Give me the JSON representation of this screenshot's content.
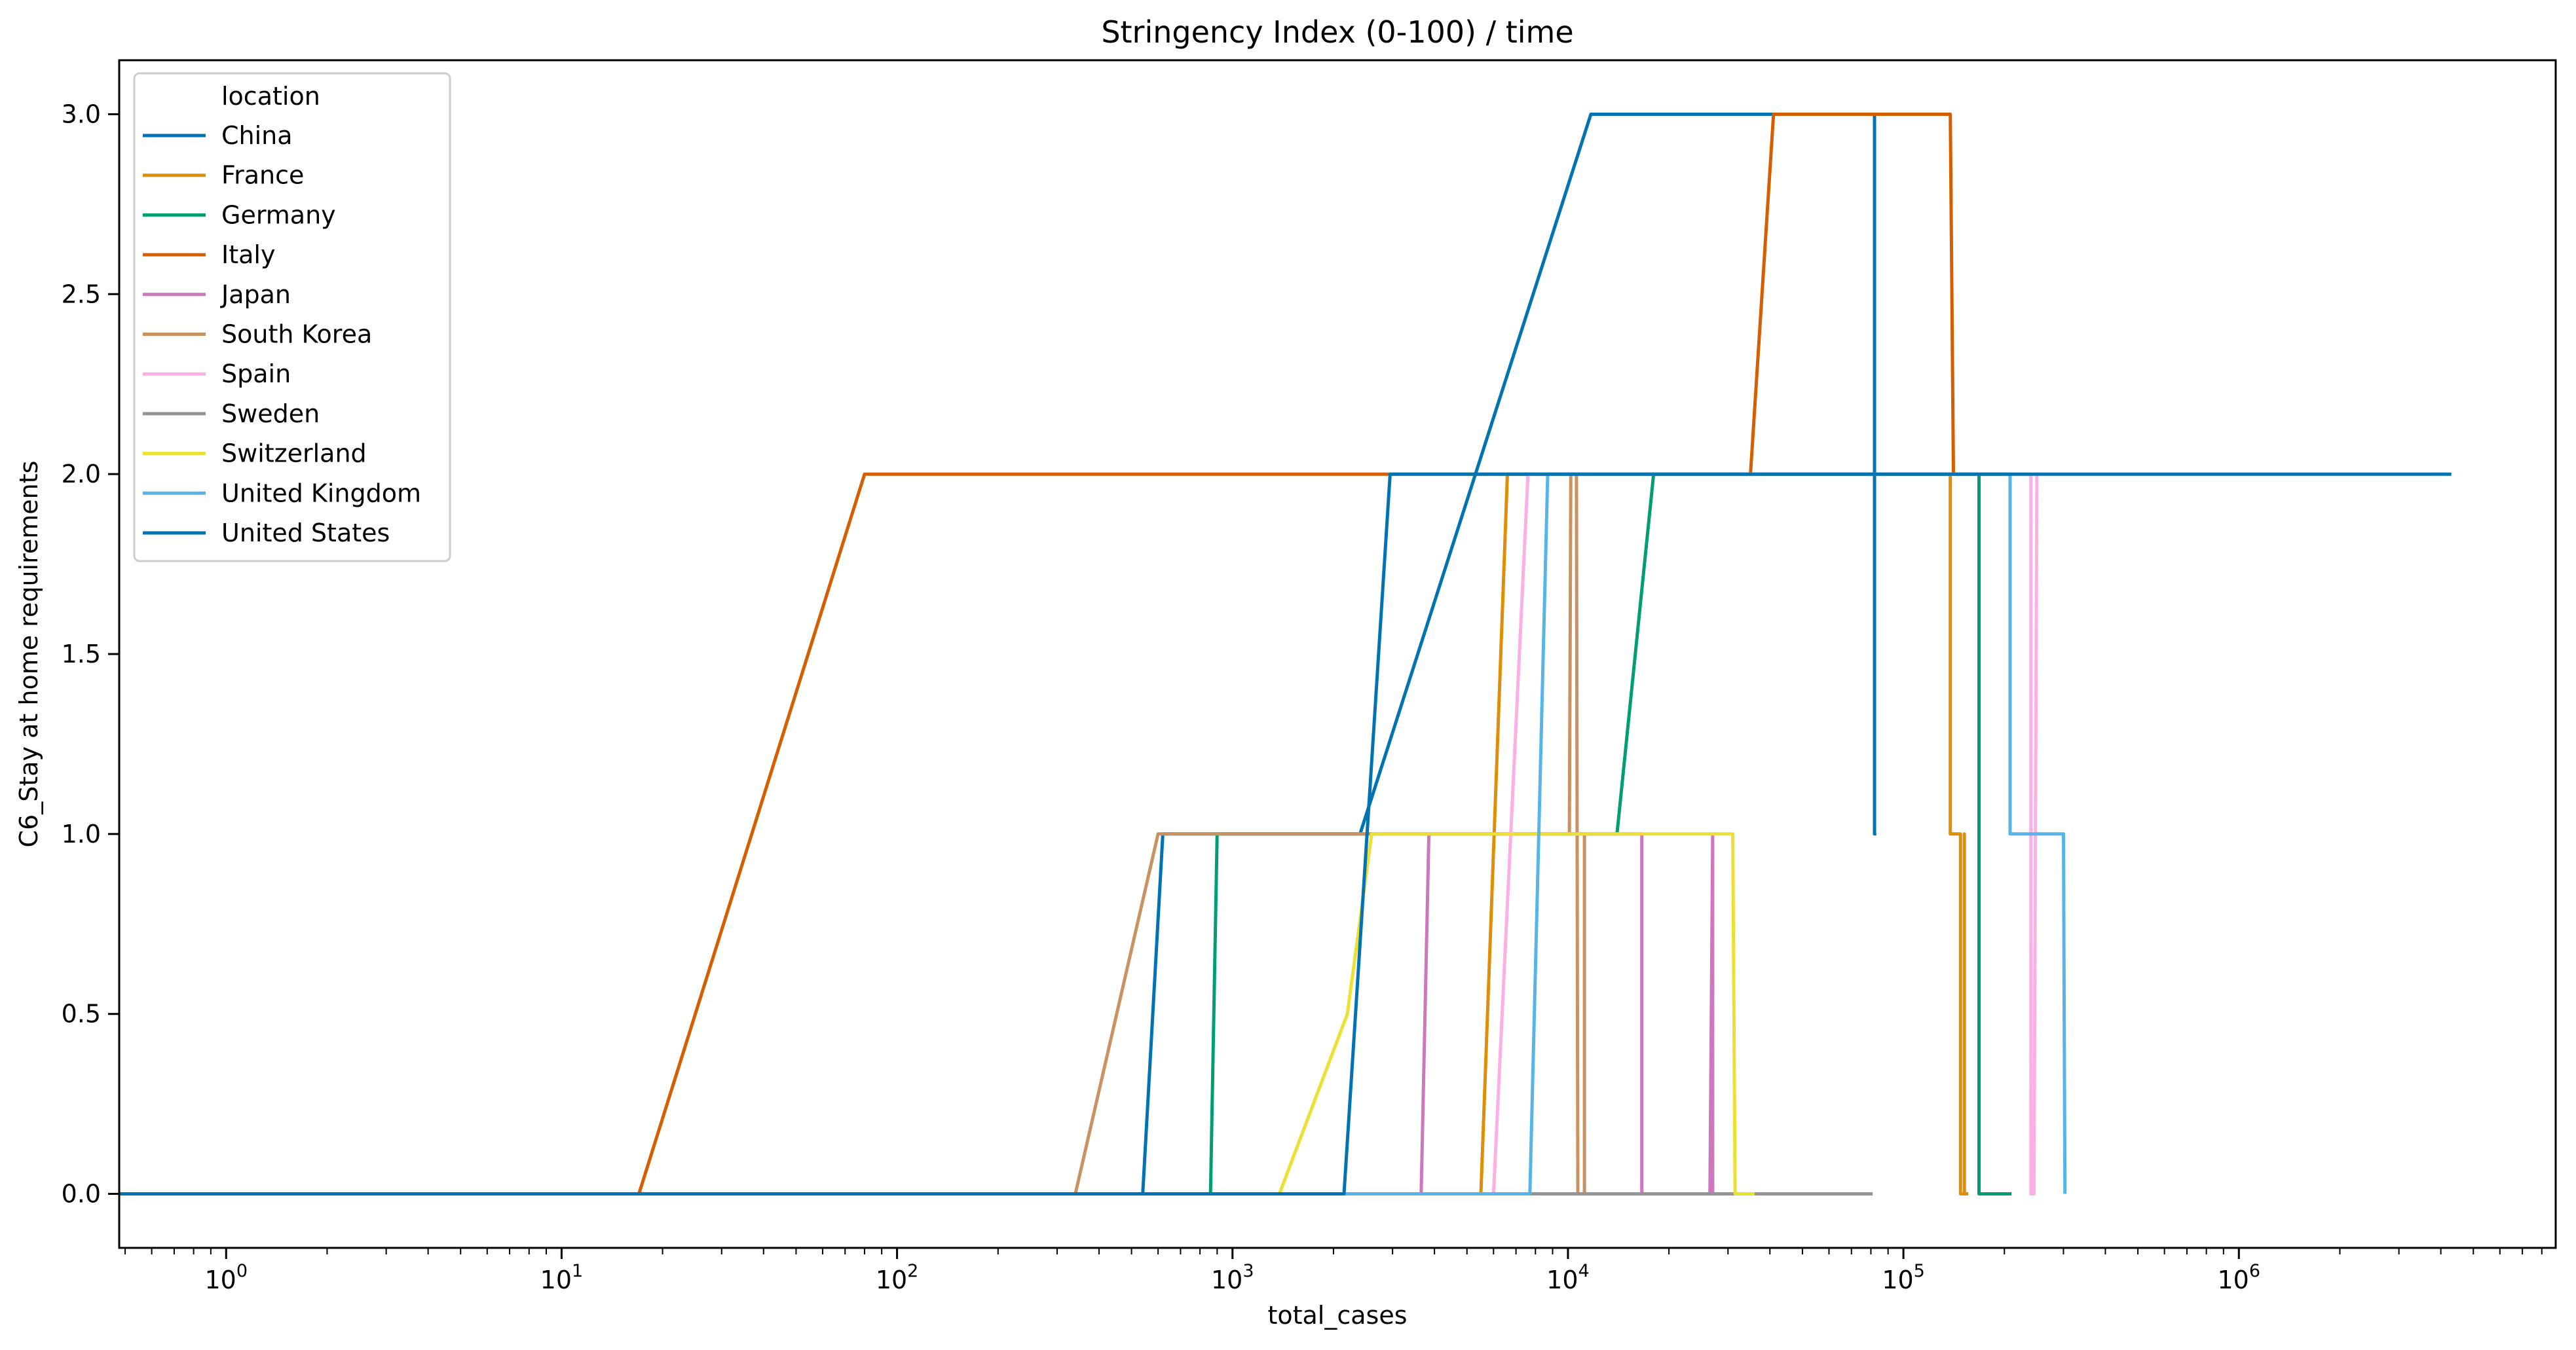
{
  "chart_data": {
    "type": "line",
    "title": "Stringency Index (0-100) / time",
    "xlabel": "total_cases",
    "ylabel": "C6_Stay at home requirements",
    "x_scale": "log",
    "xlim": [
      0.48,
      8800000
    ],
    "ylim": [
      -0.15,
      3.15
    ],
    "x_ticks": [
      {
        "value": 1,
        "base": "10",
        "exp": "0"
      },
      {
        "value": 10,
        "base": "10",
        "exp": "1"
      },
      {
        "value": 100,
        "base": "10",
        "exp": "2"
      },
      {
        "value": 1000,
        "base": "10",
        "exp": "3"
      },
      {
        "value": 10000,
        "base": "10",
        "exp": "4"
      },
      {
        "value": 100000,
        "base": "10",
        "exp": "5"
      },
      {
        "value": 1000000,
        "base": "10",
        "exp": "6"
      }
    ],
    "y_ticks": [
      {
        "value": 0,
        "label": "0.0"
      },
      {
        "value": 0.5,
        "label": "0.5"
      },
      {
        "value": 1,
        "label": "1.0"
      },
      {
        "value": 1.5,
        "label": "1.5"
      },
      {
        "value": 2,
        "label": "2.0"
      },
      {
        "value": 2.5,
        "label": "2.5"
      },
      {
        "value": 3,
        "label": "3.0"
      }
    ],
    "grid": false,
    "legend": {
      "title": "location",
      "position": "top-left"
    },
    "series": [
      {
        "name": "China",
        "color": "#0173b2",
        "points": [
          [
            0.48,
            0
          ],
          [
            540,
            0
          ],
          [
            620,
            1
          ],
          [
            2200,
            1
          ],
          [
            2250,
            1
          ],
          [
            2400,
            1
          ],
          [
            11700,
            3
          ],
          [
            82000,
            3
          ],
          [
            82000,
            1
          ],
          [
            82000,
            3
          ],
          [
            82000,
            1
          ],
          [
            82000,
            3
          ],
          [
            82000,
            1
          ],
          [
            82000,
            3
          ],
          [
            82000,
            1
          ],
          [
            83000,
            1
          ]
        ]
      },
      {
        "name": "France",
        "color": "#de8f05",
        "points": [
          [
            0.48,
            0
          ],
          [
            5500,
            0
          ],
          [
            6600,
            2
          ],
          [
            138000,
            2
          ],
          [
            138000,
            1
          ],
          [
            148000,
            1
          ],
          [
            148000,
            0
          ],
          [
            152000,
            0
          ],
          [
            152000,
            1
          ],
          [
            152000,
            0
          ],
          [
            156000,
            0
          ]
        ]
      },
      {
        "name": "Germany",
        "color": "#029e73",
        "points": [
          [
            0.48,
            0
          ],
          [
            860,
            0
          ],
          [
            900,
            1
          ],
          [
            14000,
            1
          ],
          [
            18000,
            2
          ],
          [
            168000,
            2
          ],
          [
            168000,
            0
          ],
          [
            210000,
            0
          ]
        ]
      },
      {
        "name": "Italy",
        "color": "#d55e00",
        "points": [
          [
            0.48,
            0
          ],
          [
            17,
            0
          ],
          [
            80,
            2
          ],
          [
            35000,
            2
          ],
          [
            41000,
            3
          ],
          [
            138000,
            3
          ],
          [
            141000,
            2
          ],
          [
            160000,
            2
          ]
        ]
      },
      {
        "name": "Japan",
        "color": "#cc78bc",
        "points": [
          [
            0.48,
            0
          ],
          [
            3650,
            0
          ],
          [
            3850,
            1
          ],
          [
            16600,
            1
          ],
          [
            16600,
            0
          ],
          [
            26500,
            0
          ],
          [
            27000,
            1
          ],
          [
            27000,
            0
          ],
          [
            30000,
            0
          ]
        ]
      },
      {
        "name": "South Korea",
        "color": "#ca9161",
        "points": [
          [
            0.48,
            0
          ],
          [
            340,
            0
          ],
          [
            600,
            1
          ],
          [
            10100,
            1
          ],
          [
            10200,
            2
          ],
          [
            10600,
            2
          ],
          [
            10700,
            0
          ],
          [
            11200,
            0
          ],
          [
            11200,
            1
          ],
          [
            11200,
            0
          ],
          [
            11500,
            0
          ]
        ]
      },
      {
        "name": "Spain",
        "color": "#fbafe4",
        "points": [
          [
            0.48,
            0
          ],
          [
            6000,
            0
          ],
          [
            7600,
            2
          ],
          [
            240000,
            2
          ],
          [
            240000,
            0
          ],
          [
            245000,
            0
          ],
          [
            250000,
            2
          ],
          [
            252000,
            2
          ]
        ]
      },
      {
        "name": "Sweden",
        "color": "#949494",
        "points": [
          [
            0.48,
            0
          ],
          [
            81000,
            0
          ]
        ]
      },
      {
        "name": "Switzerland",
        "color": "#ece133",
        "points": [
          [
            0.48,
            0
          ],
          [
            1380,
            0
          ],
          [
            2200,
            0.5
          ],
          [
            2600,
            1
          ],
          [
            31000,
            1
          ],
          [
            31500,
            0
          ],
          [
            36000,
            0
          ]
        ]
      },
      {
        "name": "United Kingdom",
        "color": "#56b4e9",
        "points": [
          [
            0.48,
            0
          ],
          [
            7700,
            0
          ],
          [
            8700,
            2
          ],
          [
            208000,
            2
          ],
          [
            208000,
            1
          ],
          [
            300000,
            1
          ],
          [
            303000,
            0
          ]
        ]
      },
      {
        "name": "United States",
        "color": "#0173b2",
        "points": [
          [
            0.48,
            0
          ],
          [
            2150,
            0
          ],
          [
            2950,
            2
          ],
          [
            4300000,
            2
          ]
        ]
      }
    ]
  }
}
